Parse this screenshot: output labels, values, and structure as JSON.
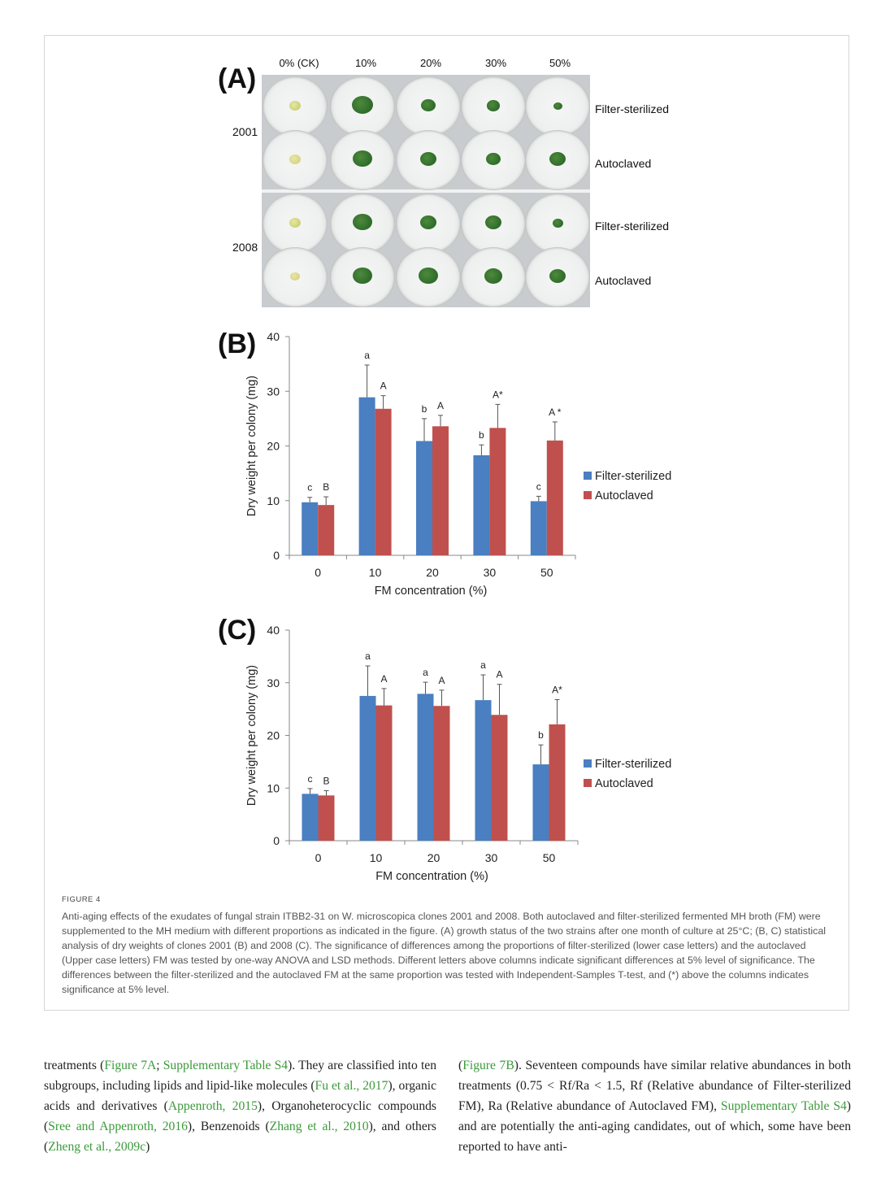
{
  "panel_a": {
    "label": "(A)",
    "columns": [
      "0% (CK)",
      "10%",
      "20%",
      "30%",
      "50%"
    ],
    "clones": [
      "2001",
      "2008"
    ],
    "rows": [
      "Filter-sterilized",
      "Autoclaved",
      "Filter-sterilized",
      "Autoclaved"
    ],
    "colony_colors": {
      "ck": "#c8d27a",
      "ck2": "#d9d389",
      "green": "#2f6b2a"
    }
  },
  "chart_data": [
    {
      "type": "bar",
      "panel": "(B)",
      "categories": [
        "0",
        "10",
        "20",
        "30",
        "50"
      ],
      "series": [
        {
          "name": "Filter-sterilized",
          "color": "#4a7fc1",
          "values": [
            9.7,
            28.9,
            20.9,
            18.3,
            9.9
          ],
          "errors": [
            0.9,
            5.9,
            4.1,
            1.9,
            0.9
          ],
          "letters": [
            "c",
            "a",
            "b",
            "b",
            "c"
          ]
        },
        {
          "name": "Autoclaved",
          "color": "#c0504d",
          "values": [
            9.2,
            26.8,
            23.6,
            23.3,
            21.0
          ],
          "errors": [
            1.5,
            2.4,
            2.0,
            4.3,
            3.4
          ],
          "letters": [
            "B",
            "A",
            "A",
            "A*",
            "A *"
          ]
        }
      ],
      "xlabel": "FM concentration (%)",
      "ylabel": "Dry weight per colony (mg)",
      "yticks": [
        "0",
        "10",
        "20",
        "30",
        "40"
      ],
      "ylim": [
        0,
        40
      ],
      "legend": "right"
    },
    {
      "type": "bar",
      "panel": "(C)",
      "categories": [
        "0",
        "10",
        "20",
        "30",
        "50"
      ],
      "series": [
        {
          "name": "Filter-sterilized",
          "color": "#4a7fc1",
          "values": [
            8.9,
            27.5,
            27.9,
            26.7,
            14.5
          ],
          "errors": [
            1.0,
            5.7,
            2.2,
            4.8,
            3.7
          ],
          "letters": [
            "c",
            "a",
            "a",
            "a",
            "b"
          ]
        },
        {
          "name": "Autoclaved",
          "color": "#c0504d",
          "values": [
            8.6,
            25.7,
            25.6,
            23.9,
            22.1
          ],
          "errors": [
            0.9,
            3.2,
            3.0,
            5.8,
            4.7
          ],
          "letters": [
            "B",
            "A",
            "A",
            "A",
            "A*"
          ]
        }
      ],
      "xlabel": "FM concentration (%)",
      "ylabel": "Dry weight per colony (mg)",
      "yticks": [
        "0",
        "10",
        "20",
        "30",
        "40"
      ],
      "ylim": [
        0,
        40
      ],
      "legend": "right"
    }
  ],
  "caption": {
    "figure_number": "FIGURE 4",
    "text": "Anti-aging effects of the exudates of fungal strain ITBB2-31 on W. microscopica clones 2001 and 2008. Both autoclaved and filter-sterilized fermented MH broth (FM) were supplemented to the MH medium with different proportions as indicated in the figure. (A) growth status of the two strains after one month of culture at 25°C; (B, C) statistical analysis of dry weights of clones 2001 (B) and 2008 (C). The significance of differences among the proportions of filter-sterilized (lower case letters) and the autoclaved (Upper case letters) FM was tested by one-way ANOVA and LSD methods. Different letters above columns indicate significant differences at 5% level of significance. The differences between the filter-sterilized and the autoclaved FM at the same proportion was tested with Independent-Samples T-test, and (*) above the columns indicates significance at 5% level."
  },
  "body_left": [
    {
      "t": "treatments ("
    },
    {
      "t": "Figure 7A",
      "ref": true
    },
    {
      "t": "; "
    },
    {
      "t": "Supplementary Table S4",
      "ref": true
    },
    {
      "t": "). They are classified into ten subgroups, including lipids and lipid-like molecules ("
    },
    {
      "t": "Fu et al., 2017",
      "ref": true
    },
    {
      "t": "), organic acids and derivatives ("
    },
    {
      "t": "Appenroth, 2015",
      "ref": true
    },
    {
      "t": "), Organoheterocyclic compounds ("
    },
    {
      "t": "Sree and Appenroth, 2016",
      "ref": true
    },
    {
      "t": "), Benzenoids ("
    },
    {
      "t": "Zhang et al., 2010",
      "ref": true
    },
    {
      "t": "), and others ("
    },
    {
      "t": "Zheng et al., 2009c",
      "ref": true
    },
    {
      "t": ")"
    }
  ],
  "body_right": [
    {
      "t": "("
    },
    {
      "t": "Figure 7B",
      "ref": true
    },
    {
      "t": "). Seventeen compounds have similar relative abundances in both treatments (0.75 < Rf/Ra < 1.5, Rf (Relative abundance of Filter-sterilized FM), Ra (Relative abundance of Autoclaved FM), "
    },
    {
      "t": "Supplementary Table S4",
      "ref": true
    },
    {
      "t": ") and are potentially the anti-aging candidates, out of which, some have been reported to have anti-"
    }
  ]
}
